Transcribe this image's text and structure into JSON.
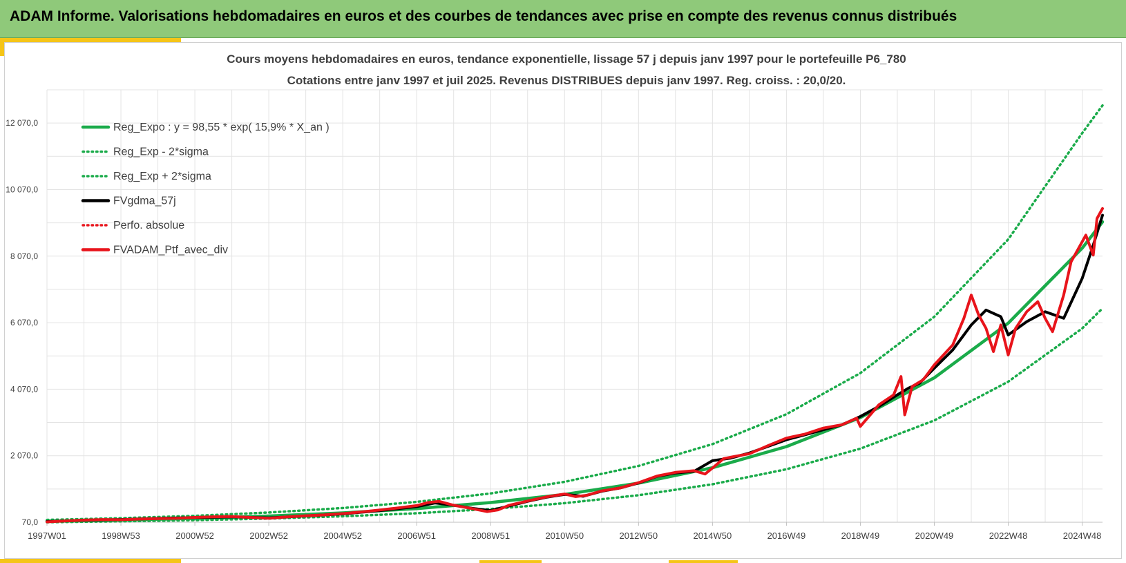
{
  "header": {
    "title": "ADAM Informe. Valorisations hebdomadaires en euros et des courbes de tendances avec prise en compte des revenus connus distribués"
  },
  "colors": {
    "header_bg": "#8fc97a",
    "accent_yellow": "#f5c518",
    "green": "#1aab4a",
    "black": "#000000",
    "red": "#e8141b"
  },
  "chart_data": {
    "type": "line",
    "title": "Cours moyens hebdomadaires  en euros, tendance exponentielle, lissage 57 j depuis janv 1997 pour le portefeuille P6_780",
    "subtitle": "Cotations  entre janv 1997 et juil 2025. Revenus DISTRIBUES depuis janv 1997. Reg. croiss. : 20,0/20.",
    "xlabel": "",
    "ylabel": "",
    "xlim": [
      1997.0,
      2025.55
    ],
    "ylim": [
      70,
      13070
    ],
    "grid": true,
    "legend_position": "top-left",
    "x_ticks": [
      {
        "label": "1997W01",
        "x": 1997.0
      },
      {
        "label": "1998W53",
        "x": 1999.0
      },
      {
        "label": "2000W52",
        "x": 2001.0
      },
      {
        "label": "2002W52",
        "x": 2003.0
      },
      {
        "label": "2004W52",
        "x": 2005.0
      },
      {
        "label": "2006W51",
        "x": 2007.0
      },
      {
        "label": "2008W51",
        "x": 2009.0
      },
      {
        "label": "2010W50",
        "x": 2011.0
      },
      {
        "label": "2012W50",
        "x": 2013.0
      },
      {
        "label": "2014W50",
        "x": 2015.0
      },
      {
        "label": "2016W49",
        "x": 2017.0
      },
      {
        "label": "2018W49",
        "x": 2019.0
      },
      {
        "label": "2020W49",
        "x": 2021.0
      },
      {
        "label": "2022W48",
        "x": 2023.0
      },
      {
        "label": "2024W48",
        "x": 2025.0
      }
    ],
    "y_ticks": [
      {
        "label": "70,0",
        "y": 70
      },
      {
        "label": "2 070,0",
        "y": 2070
      },
      {
        "label": "4 070,0",
        "y": 4070
      },
      {
        "label": "6 070,0",
        "y": 6070
      },
      {
        "label": "8 070,0",
        "y": 8070
      },
      {
        "label": "10 070,0",
        "y": 10070
      },
      {
        "label": "12 070,0",
        "y": 12070
      }
    ],
    "series": [
      {
        "name": "Reg_Expo : y = 98,55 * exp( 15,9% *  X_an )",
        "style": "solid",
        "color": "#1aab4a",
        "x": [
          1997.0,
          1999.0,
          2001.0,
          2003.0,
          2005.0,
          2007.0,
          2009.0,
          2011.0,
          2013.0,
          2015.0,
          2017.0,
          2019.0,
          2021.0,
          2023.0,
          2025.0,
          2025.55
        ],
        "y": [
          99,
          136,
          186,
          256,
          351,
          482,
          661,
          907,
          1245,
          1708,
          2344,
          3216,
          4413,
          6056,
          8310,
          9100
        ]
      },
      {
        "name": "Reg_Exp - 2*sigma",
        "style": "dotted",
        "color": "#1aab4a",
        "x": [
          1997.0,
          1999.0,
          2001.0,
          2003.0,
          2005.0,
          2007.0,
          2009.0,
          2011.0,
          2013.0,
          2015.0,
          2017.0,
          2019.0,
          2021.0,
          2023.0,
          2025.0,
          2025.55
        ],
        "y": [
          70,
          96,
          132,
          181,
          249,
          341,
          469,
          643,
          883,
          1212,
          1663,
          2282,
          3131,
          4297,
          5897,
          6500
        ]
      },
      {
        "name": "Reg_Exp + 2*sigma",
        "style": "dotted",
        "color": "#1aab4a",
        "x": [
          1997.0,
          1999.0,
          2001.0,
          2003.0,
          2005.0,
          2007.0,
          2009.0,
          2011.0,
          2013.0,
          2015.0,
          2017.0,
          2019.0,
          2021.0,
          2023.0,
          2025.0,
          2025.55
        ],
        "y": [
          140,
          192,
          264,
          362,
          497,
          682,
          936,
          1284,
          1762,
          2418,
          3318,
          4553,
          6248,
          8575,
          11768,
          12600
        ]
      },
      {
        "name": "FVgdma_57j",
        "style": "solid",
        "color": "#000000",
        "x": [
          1997.0,
          1998.0,
          1999.0,
          2000.0,
          2001.0,
          2002.0,
          2003.0,
          2004.0,
          2005.0,
          2006.0,
          2007.0,
          2007.5,
          2008.0,
          2008.5,
          2009.0,
          2009.5,
          2010.0,
          2010.5,
          2011.0,
          2011.5,
          2012.0,
          2012.5,
          2013.0,
          2013.5,
          2014.0,
          2014.5,
          2015.0,
          2015.5,
          2016.0,
          2016.5,
          2017.0,
          2017.5,
          2018.0,
          2018.5,
          2019.0,
          2019.5,
          2020.0,
          2020.3,
          2020.6,
          2021.0,
          2021.5,
          2022.0,
          2022.4,
          2022.8,
          2023.0,
          2023.5,
          2024.0,
          2024.5,
          2025.0,
          2025.3,
          2025.55
        ],
        "y": [
          90,
          130,
          150,
          185,
          210,
          230,
          200,
          260,
          320,
          420,
          540,
          650,
          580,
          490,
          420,
          560,
          700,
          820,
          910,
          850,
          1000,
          1100,
          1250,
          1450,
          1550,
          1600,
          1920,
          2000,
          2150,
          2350,
          2550,
          2700,
          2850,
          3000,
          3250,
          3550,
          3900,
          4100,
          4250,
          4700,
          5250,
          6000,
          6450,
          6250,
          5700,
          6100,
          6400,
          6200,
          7400,
          8400,
          9300
        ]
      },
      {
        "name": "Perfo. absolue",
        "style": "dotted",
        "color": "#e8141b",
        "x": [
          1997.0,
          1998.0,
          1999.0,
          2000.0,
          2001.0,
          2002.0,
          2003.0,
          2004.0,
          2005.0,
          2006.0,
          2007.0,
          2007.5,
          2008.0,
          2008.5,
          2009.0,
          2009.5,
          2010.0,
          2010.5,
          2011.0,
          2011.5,
          2012.0,
          2012.5,
          2013.0,
          2013.5,
          2014.0,
          2014.5,
          2015.0,
          2015.5,
          2016.0,
          2016.5,
          2017.0,
          2017.5,
          2018.0,
          2018.5,
          2019.0,
          2019.5,
          2020.0,
          2020.3,
          2020.6,
          2021.0,
          2021.5,
          2022.0,
          2022.4,
          2022.8,
          2023.0,
          2023.5,
          2024.0,
          2024.5,
          2025.0,
          2025.3,
          2025.55
        ],
        "y": [
          88,
          130,
          150,
          185,
          212,
          230,
          200,
          262,
          322,
          425,
          545,
          655,
          585,
          495,
          425,
          565,
          705,
          825,
          915,
          855,
          1005,
          1105,
          1255,
          1455,
          1555,
          1605,
          1925,
          2005,
          2155,
          2355,
          2555,
          2705,
          2855,
          3005,
          3255,
          3555,
          3905,
          4105,
          4255,
          4705,
          5255,
          6005,
          6455,
          6255,
          5705,
          6105,
          6405,
          6205,
          7405,
          8405,
          9305
        ]
      },
      {
        "name": "FVADAM_Ptf_avec_div",
        "style": "solid",
        "color": "#e8141b",
        "x": [
          1997.0,
          1997.5,
          1998.0,
          1998.5,
          1999.0,
          1999.5,
          2000.0,
          2000.5,
          2001.0,
          2001.5,
          2002.0,
          2002.5,
          2003.0,
          2003.5,
          2004.0,
          2004.5,
          2005.0,
          2005.5,
          2006.0,
          2006.5,
          2007.0,
          2007.3,
          2007.6,
          2008.0,
          2008.5,
          2008.9,
          2009.2,
          2009.5,
          2010.0,
          2010.5,
          2011.0,
          2011.3,
          2011.6,
          2012.0,
          2012.5,
          2013.0,
          2013.5,
          2014.0,
          2014.5,
          2014.8,
          2015.0,
          2015.3,
          2015.6,
          2016.0,
          2016.5,
          2017.0,
          2017.5,
          2018.0,
          2018.5,
          2018.9,
          2019.0,
          2019.5,
          2019.9,
          2020.1,
          2020.2,
          2020.4,
          2020.7,
          2021.0,
          2021.5,
          2021.8,
          2022.0,
          2022.2,
          2022.4,
          2022.6,
          2022.8,
          2023.0,
          2023.2,
          2023.5,
          2023.8,
          2024.0,
          2024.2,
          2024.5,
          2024.7,
          2024.9,
          2025.1,
          2025.3,
          2025.4,
          2025.55
        ],
        "y": [
          80,
          110,
          135,
          150,
          145,
          165,
          180,
          190,
          215,
          235,
          240,
          215,
          190,
          230,
          265,
          290,
          330,
          380,
          440,
          500,
          570,
          660,
          700,
          580,
          480,
          390,
          440,
          580,
          710,
          830,
          920,
          840,
          880,
          1010,
          1100,
          1260,
          1460,
          1570,
          1620,
          1520,
          1700,
          1980,
          2050,
          2130,
          2370,
          2600,
          2720,
          2900,
          3000,
          3200,
          2950,
          3600,
          3900,
          4450,
          3300,
          4150,
          4350,
          4800,
          5400,
          6200,
          6900,
          6300,
          5900,
          5200,
          6000,
          5100,
          5900,
          6400,
          6700,
          6200,
          5800,
          6900,
          7900,
          8300,
          8700,
          8100,
          9200,
          9500
        ]
      }
    ]
  }
}
